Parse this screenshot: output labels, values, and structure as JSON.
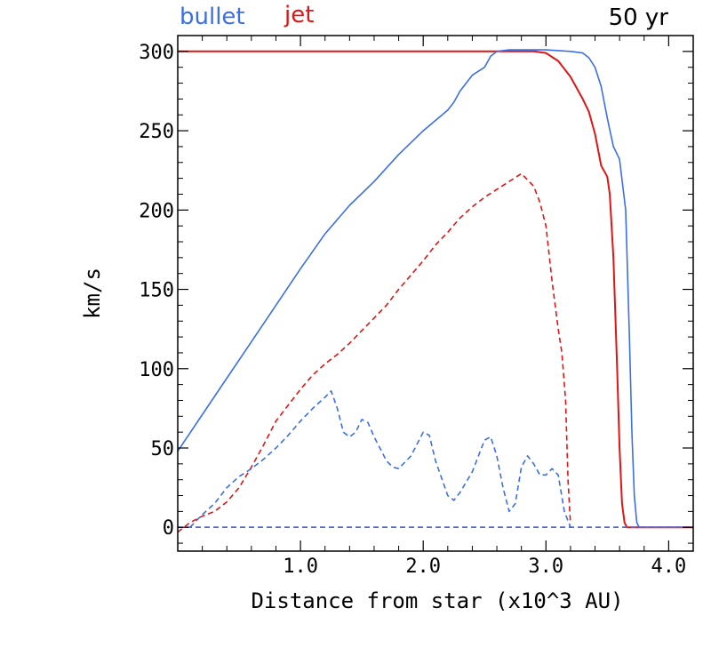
{
  "chart_data": {
    "type": "line",
    "annotation": "50 yr",
    "xlabel": "Distance from star (x10^3 AU)",
    "ylabel": "km/s",
    "xlim": [
      0,
      4.2
    ],
    "ylim": [
      -15,
      310
    ],
    "xticks": [
      {
        "value": 1.0,
        "label": "1.0"
      },
      {
        "value": 2.0,
        "label": "2.0"
      },
      {
        "value": 3.0,
        "label": "3.0"
      },
      {
        "value": 4.0,
        "label": "4.0"
      }
    ],
    "yticks": [
      {
        "value": 0,
        "label": "0"
      },
      {
        "value": 50,
        "label": "50"
      },
      {
        "value": 100,
        "label": "100"
      },
      {
        "value": 150,
        "label": "150"
      },
      {
        "value": 200,
        "label": "200"
      },
      {
        "value": 250,
        "label": "250"
      },
      {
        "value": 300,
        "label": "300"
      }
    ],
    "legend": [
      {
        "label": "bullet",
        "color": "#3b6ee8"
      },
      {
        "label": "jet",
        "color": "#e01414"
      }
    ],
    "series": [
      {
        "group": "jet",
        "style": "solid",
        "color": "#e01414",
        "x": [
          0,
          0.5,
          1.0,
          1.5,
          2.0,
          2.5,
          2.9,
          3.0,
          3.1,
          3.2,
          3.3,
          3.35,
          3.4,
          3.45,
          3.5,
          3.52,
          3.55,
          3.58,
          3.6,
          3.62,
          3.64,
          3.66,
          3.7,
          4.2
        ],
        "y": [
          300,
          300,
          300,
          300,
          300,
          300,
          300,
          299,
          294,
          284,
          270,
          262,
          248,
          228,
          221,
          210,
          170,
          100,
          50,
          15,
          3,
          0,
          0,
          0
        ]
      },
      {
        "group": "bullet",
        "style": "solid",
        "color": "#3b6ee8",
        "x": [
          0,
          0.2,
          0.4,
          0.6,
          0.8,
          1.0,
          1.2,
          1.4,
          1.6,
          1.8,
          2.0,
          2.2,
          2.25,
          2.3,
          2.4,
          2.5,
          2.55,
          2.6,
          2.7,
          2.8,
          2.9,
          3.0,
          3.2,
          3.3,
          3.35,
          3.4,
          3.45,
          3.5,
          3.55,
          3.6,
          3.65,
          3.68,
          3.7,
          3.72,
          3.74,
          3.76,
          4.2
        ],
        "y": [
          48,
          71,
          94,
          117,
          140,
          163,
          185,
          203,
          218,
          235,
          250,
          263,
          268,
          275,
          285,
          290,
          297,
          300,
          301,
          301,
          301,
          301,
          300,
          299,
          296,
          290,
          278,
          258,
          240,
          232,
          200,
          120,
          60,
          20,
          3,
          0,
          0
        ]
      },
      {
        "group": "jet",
        "style": "dashed",
        "color": "#e01414",
        "x": [
          0.0,
          0.1,
          0.2,
          0.3,
          0.4,
          0.5,
          0.6,
          0.7,
          0.8,
          0.9,
          1.0,
          1.1,
          1.2,
          1.3,
          1.4,
          1.5,
          1.6,
          1.7,
          1.8,
          1.9,
          2.0,
          2.1,
          2.2,
          2.3,
          2.4,
          2.5,
          2.6,
          2.7,
          2.8,
          2.9,
          2.95,
          3.0,
          3.05,
          3.1,
          3.13,
          3.16,
          3.18,
          3.2
        ],
        "y": [
          -3,
          3,
          7,
          10,
          16,
          25,
          38,
          52,
          67,
          77,
          87,
          96,
          103,
          109,
          116,
          124,
          132,
          140,
          150,
          159,
          168,
          178,
          186,
          195,
          202,
          208,
          213,
          218,
          223,
          215,
          205,
          190,
          155,
          125,
          110,
          80,
          30,
          2
        ]
      },
      {
        "group": "bullet",
        "style": "dashed",
        "color": "#3b6ee8",
        "x": [
          0.1,
          0.2,
          0.3,
          0.4,
          0.5,
          0.6,
          0.7,
          0.8,
          0.9,
          1.0,
          1.1,
          1.2,
          1.25,
          1.3,
          1.35,
          1.4,
          1.45,
          1.5,
          1.55,
          1.6,
          1.7,
          1.75,
          1.8,
          1.9,
          2.0,
          2.05,
          2.1,
          2.2,
          2.25,
          2.3,
          2.4,
          2.5,
          2.55,
          2.6,
          2.65,
          2.7,
          2.75,
          2.8,
          2.85,
          2.9,
          2.95,
          3.0,
          3.05,
          3.1,
          3.15,
          3.2
        ],
        "y": [
          0,
          8,
          15,
          25,
          32,
          37,
          43,
          50,
          58,
          67,
          75,
          82,
          86,
          75,
          60,
          57,
          60,
          68,
          66,
          57,
          42,
          38,
          37,
          45,
          60,
          58,
          42,
          20,
          17,
          22,
          35,
          55,
          57,
          45,
          25,
          10,
          15,
          38,
          45,
          40,
          33,
          33,
          37,
          33,
          10,
          0
        ]
      },
      {
        "group": "jet",
        "style": "dashed",
        "color": "#e01414",
        "x": [
          0,
          4.2
        ],
        "y": [
          0,
          0
        ]
      },
      {
        "group": "bullet",
        "style": "dashed",
        "color": "#3b6ee8",
        "x": [
          0,
          4.2
        ],
        "y": [
          0,
          0
        ]
      }
    ]
  }
}
